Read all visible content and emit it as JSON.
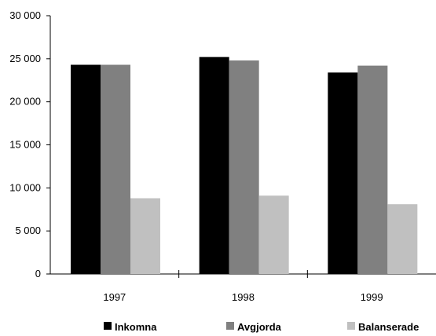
{
  "chart_data": {
    "type": "bar",
    "title": "",
    "xlabel": "",
    "ylabel": "",
    "categories": [
      "1997",
      "1998",
      "1999"
    ],
    "series": [
      {
        "name": "Inkomna",
        "values": [
          24300,
          25200,
          23400
        ],
        "color": "#000000"
      },
      {
        "name": "Avgjorda",
        "values": [
          24300,
          24800,
          24200
        ],
        "color": "#808080"
      },
      {
        "name": "Balanserade",
        "values": [
          8800,
          9100,
          8100
        ],
        "color": "#c0c0c0"
      }
    ],
    "ylim": [
      0,
      30000
    ],
    "yticks": [
      0,
      5000,
      10000,
      15000,
      20000,
      25000,
      30000
    ],
    "ytick_labels": [
      "0",
      "5 000",
      "10 000",
      "15 000",
      "20 000",
      "25 000",
      "30 000"
    ],
    "grid": false,
    "legend_position": "bottom"
  }
}
